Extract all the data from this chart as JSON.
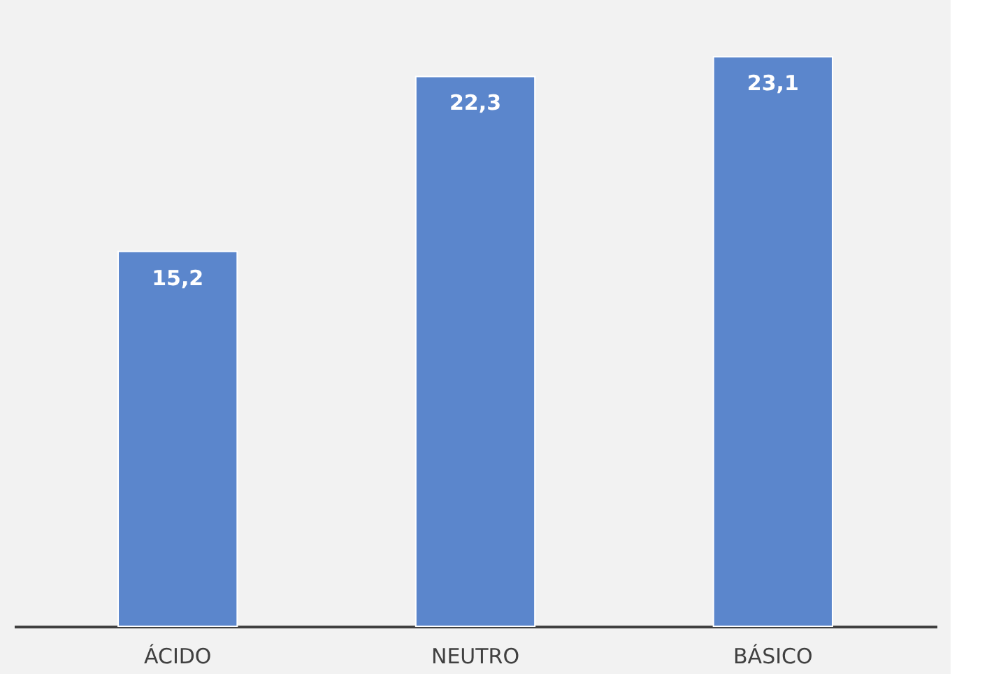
{
  "chart_data": {
    "type": "bar",
    "categories": [
      "ÁCIDO",
      "NEUTRO",
      "BÁSICO"
    ],
    "values": [
      15.2,
      22.3,
      23.1
    ],
    "value_labels": [
      "15,2",
      "22,3",
      "23,1"
    ],
    "color": "#5b86cc"
  }
}
